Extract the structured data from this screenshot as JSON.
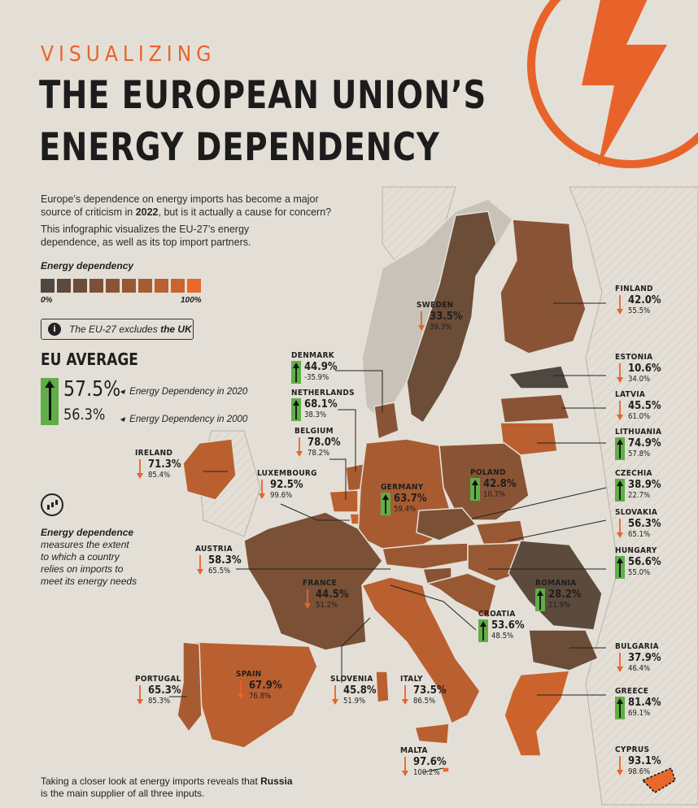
{
  "header": {
    "kicker": "VISUALIZING",
    "title_line1": "THE EUROPEAN UNION’S",
    "title_line2": "ENERGY DEPENDENCY"
  },
  "intro": {
    "p1_a": "Europe’s dependence on energy imports has become a major source of criticism in ",
    "p1_bold": "2022",
    "p1_b": ", but is it actually a cause for concern?",
    "p2": "This infographic visualizes the EU-27’s energy dependence, as well as its top import partners."
  },
  "legend": {
    "title": "Energy dependency",
    "min_label": "0%",
    "max_label": "100%",
    "colors": [
      "#4f4740",
      "#5c4a3c",
      "#6b4d38",
      "#7a5136",
      "#895435",
      "#985833",
      "#a85b31",
      "#ba5f2f",
      "#cc632c",
      "#e8672a"
    ]
  },
  "note": {
    "text": "The EU-27 excludes ",
    "bold": "the UK",
    "icon": "info-icon"
  },
  "eu_average": {
    "heading": "EU AVERAGE",
    "value_2020": "57.5%",
    "value_2000": "56.3%",
    "label_2020": "Energy Dependency in 2020",
    "label_2000": "Energy Dependency in 2000"
  },
  "definition": {
    "icon": "chart-growth-icon",
    "bold": "Energy dependence",
    "text": " measures the extent to which a country relies on imports to meet its energy needs"
  },
  "footer": {
    "text_a": "Taking a closer look at energy imports reveals that ",
    "bold": "Russia",
    "text_b": " is the main supplier of all three inputs."
  },
  "colors": {
    "accent": "#e8632a",
    "up_arrow": "#5fae47",
    "down_arrow": "#e8632a",
    "background": "#e4dfd6"
  },
  "countries": [
    {
      "name": "FINLAND",
      "v2020": "42.0%",
      "v2000": "55.5%",
      "trend": "down"
    },
    {
      "name": "SWEDEN",
      "v2020": "33.5%",
      "v2000": "39.3%",
      "trend": "down"
    },
    {
      "name": "ESTONIA",
      "v2020": "10.6%",
      "v2000": "34.0%",
      "trend": "down"
    },
    {
      "name": "DENMARK",
      "v2020": "44.9%",
      "v2000": "-35.9%",
      "trend": "up"
    },
    {
      "name": "LATVIA",
      "v2020": "45.5%",
      "v2000": "61.0%",
      "trend": "down"
    },
    {
      "name": "NETHERLANDS",
      "v2020": "68.1%",
      "v2000": "38.3%",
      "trend": "up"
    },
    {
      "name": "LITHUANIA",
      "v2020": "74.9%",
      "v2000": "57.8%",
      "trend": "up"
    },
    {
      "name": "BELGIUM",
      "v2020": "78.0%",
      "v2000": "78.2%",
      "trend": "down"
    },
    {
      "name": "IRELAND",
      "v2020": "71.3%",
      "v2000": "85.4%",
      "trend": "down"
    },
    {
      "name": "POLAND",
      "v2020": "42.8%",
      "v2000": "10.7%",
      "trend": "up"
    },
    {
      "name": "CZECHIA",
      "v2020": "38.9%",
      "v2000": "22.7%",
      "trend": "up"
    },
    {
      "name": "LUXEMBOURG",
      "v2020": "92.5%",
      "v2000": "99.6%",
      "trend": "down"
    },
    {
      "name": "GERMANY",
      "v2020": "63.7%",
      "v2000": "59.4%",
      "trend": "up"
    },
    {
      "name": "SLOVAKIA",
      "v2020": "56.3%",
      "v2000": "65.1%",
      "trend": "down"
    },
    {
      "name": "AUSTRIA",
      "v2020": "58.3%",
      "v2000": "65.5%",
      "trend": "down"
    },
    {
      "name": "HUNGARY",
      "v2020": "56.6%",
      "v2000": "55.0%",
      "trend": "up"
    },
    {
      "name": "FRANCE",
      "v2020": "44.5%",
      "v2000": "51.2%",
      "trend": "down"
    },
    {
      "name": "ROMANIA",
      "v2020": "28.2%",
      "v2000": "21.9%",
      "trend": "up"
    },
    {
      "name": "CROATIA",
      "v2020": "53.6%",
      "v2000": "48.5%",
      "trend": "up"
    },
    {
      "name": "BULGARIA",
      "v2020": "37.9%",
      "v2000": "46.4%",
      "trend": "down"
    },
    {
      "name": "PORTUGAL",
      "v2020": "65.3%",
      "v2000": "85.3%",
      "trend": "down"
    },
    {
      "name": "SPAIN",
      "v2020": "67.9%",
      "v2000": "76.8%",
      "trend": "down"
    },
    {
      "name": "SLOVENIA",
      "v2020": "45.8%",
      "v2000": "51.9%",
      "trend": "down"
    },
    {
      "name": "ITALY",
      "v2020": "73.5%",
      "v2000": "86.5%",
      "trend": "down"
    },
    {
      "name": "GREECE",
      "v2020": "81.4%",
      "v2000": "69.1%",
      "trend": "up"
    },
    {
      "name": "MALTA",
      "v2020": "97.6%",
      "v2000": "100.2%",
      "trend": "down"
    },
    {
      "name": "CYPRUS",
      "v2020": "93.1%",
      "v2000": "98.6%",
      "trend": "down"
    }
  ]
}
